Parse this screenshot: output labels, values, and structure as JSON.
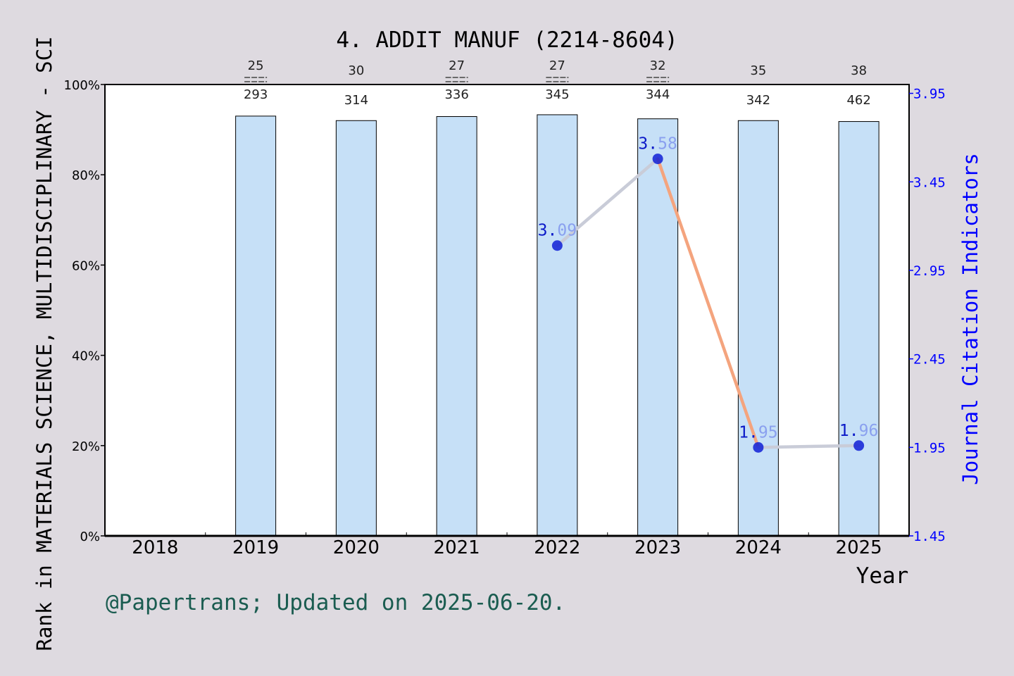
{
  "chart_data": {
    "type": "bar",
    "title": "4. ADDIT MANUF (2214-8604)",
    "xlabel": "Year",
    "ylabel_left": "Rank in MATERIALS SCIENCE, MULTIDISCIPLINARY - SCI",
    "ylabel_right": "Journal Citation Indicators",
    "categories": [
      "2018",
      "2019",
      "2020",
      "2021",
      "2022",
      "2023",
      "2024",
      "2025"
    ],
    "y_left": {
      "range": [
        0,
        100
      ],
      "ticks": [
        "0%",
        "20%",
        "40%",
        "60%",
        "80%",
        "100%"
      ]
    },
    "y_right": {
      "range": [
        1.45,
        4.0
      ],
      "ticks": [
        "1.45",
        "1.95",
        "2.45",
        "2.95",
        "3.45",
        "3.95"
      ]
    },
    "series": [
      {
        "kind": "bar",
        "axis": "left",
        "values_percent": [
          null,
          93,
          92,
          92.9,
          93.3,
          92.4,
          92.0,
          91.8
        ]
      },
      {
        "kind": "line",
        "axis": "right",
        "values": [
          null,
          null,
          null,
          null,
          3.09,
          3.58,
          1.95,
          1.96
        ],
        "labels": [
          "",
          "",
          "",
          "",
          "3.09",
          "3.58",
          "1.95",
          "1.96"
        ]
      }
    ],
    "rank_annotations": [
      {
        "rank": "",
        "total": "",
        "double_line": false
      },
      {
        "rank": "25",
        "total": "293",
        "double_line": true
      },
      {
        "rank": "30",
        "total": "314",
        "double_line": false
      },
      {
        "rank": "27",
        "total": "336",
        "double_line": true
      },
      {
        "rank": "27",
        "total": "345",
        "double_line": true
      },
      {
        "rank": "32",
        "total": "344",
        "double_line": true
      },
      {
        "rank": "35",
        "total": "342",
        "double_line": false
      },
      {
        "rank": "38",
        "total": "462",
        "double_line": false
      }
    ],
    "footer": "@Papertrans; Updated on 2025-06-20.",
    "colors": {
      "bar_fill": "#c6e0f7",
      "line_up": "#c9ccd8",
      "line_down": "#f4a47e",
      "marker": "#0f1fd6",
      "right_axis": "#0000ff",
      "footer": "#1a5c50",
      "background": "#dedae0"
    },
    "grid": false
  }
}
